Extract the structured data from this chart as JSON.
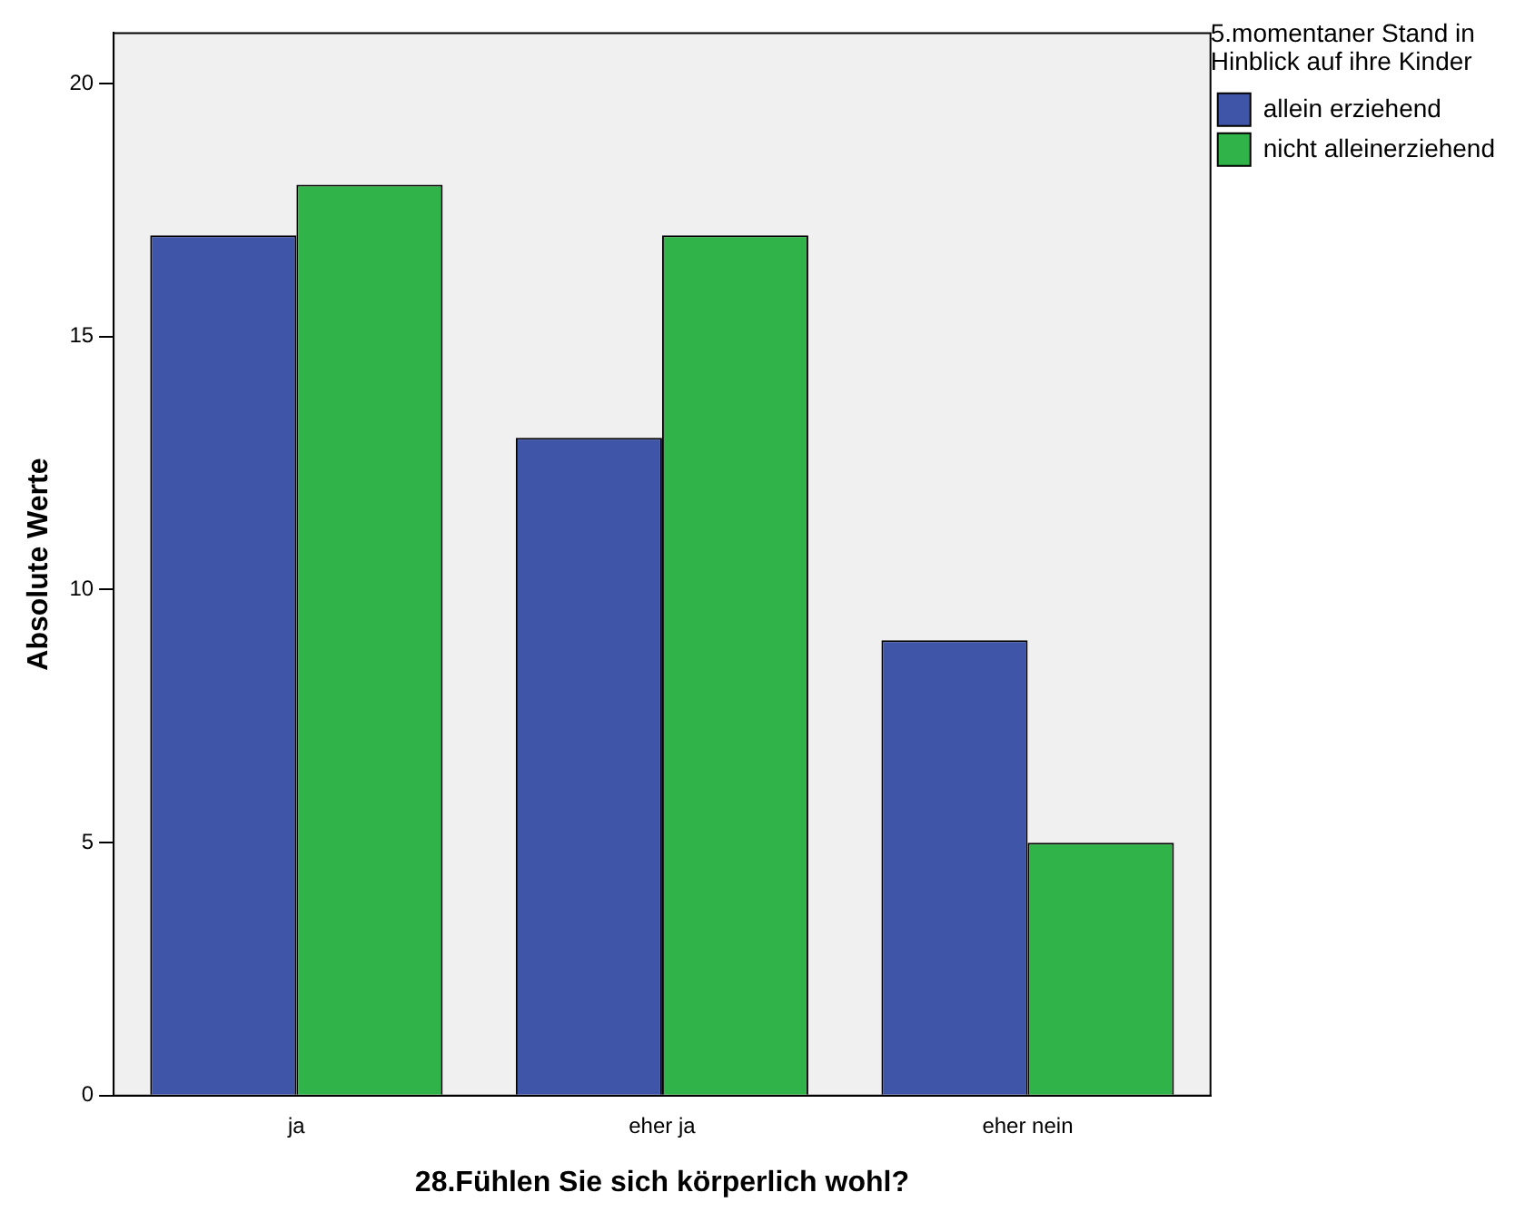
{
  "chart_data": {
    "type": "bar",
    "xlabel": "28.Fühlen Sie sich körperlich wohl?",
    "ylabel": "Absolute Werte",
    "legend_title": "5.momentaner Stand in Hinblick auf ihre Kinder",
    "categories": [
      "ja",
      "eher ja",
      "eher nein"
    ],
    "series": [
      {
        "name": "allein erziehend",
        "color": "#3f55a8",
        "values": [
          17,
          13,
          9
        ]
      },
      {
        "name": "nicht alleinerziehend",
        "color": "#30b449",
        "values": [
          18,
          17,
          5
        ]
      }
    ],
    "ylim": [
      0,
      21
    ],
    "yticks": [
      0,
      5,
      10,
      15,
      20
    ],
    "grid": false,
    "legend": "top right"
  }
}
